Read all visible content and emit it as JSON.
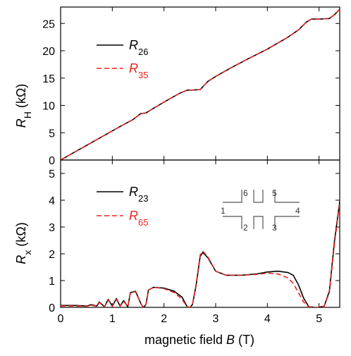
{
  "chart_data": [
    {
      "type": "line",
      "panel": "top",
      "ylabel_symbol": "R",
      "ylabel_sub": "H",
      "ylabel_unit": "(kΩ)",
      "xlim": [
        0,
        5.4
      ],
      "ylim": [
        0,
        28
      ],
      "yticks": [
        "0",
        "5",
        "10",
        "15",
        "20",
        "25"
      ],
      "legend_placement": "upper-left",
      "series": [
        {
          "name_symbol": "R",
          "name_sub": "26",
          "color": "#000000",
          "style": "solid",
          "x": [
            0,
            0.3,
            0.6,
            0.9,
            1.2,
            1.4,
            1.55,
            1.65,
            1.75,
            2.0,
            2.3,
            2.45,
            2.55,
            2.7,
            2.85,
            3.0,
            3.3,
            3.6,
            4.0,
            4.4,
            4.6,
            4.75,
            4.85,
            5.0,
            5.2,
            5.3,
            5.4
          ],
          "y": [
            0,
            1.6,
            3.2,
            4.8,
            6.4,
            7.4,
            8.5,
            8.6,
            9.2,
            10.6,
            12.2,
            12.8,
            12.8,
            12.9,
            14.4,
            15.3,
            16.9,
            18.4,
            20.3,
            22.5,
            23.8,
            25.2,
            25.8,
            25.8,
            25.9,
            26.6,
            27.6
          ]
        },
        {
          "name_symbol": "R",
          "name_sub": "35",
          "color": "#e8231e",
          "style": "dashed",
          "x": [
            0,
            0.3,
            0.6,
            0.9,
            1.2,
            1.4,
            1.55,
            1.65,
            1.75,
            2.0,
            2.3,
            2.45,
            2.55,
            2.7,
            2.85,
            3.0,
            3.3,
            3.6,
            4.0,
            4.4,
            4.6,
            4.75,
            4.85,
            5.0,
            5.2,
            5.3,
            5.4
          ],
          "y": [
            0,
            1.6,
            3.2,
            4.8,
            6.4,
            7.4,
            8.5,
            8.6,
            9.2,
            10.6,
            12.2,
            12.8,
            12.8,
            12.9,
            14.4,
            15.3,
            16.9,
            18.4,
            20.3,
            22.5,
            23.8,
            25.2,
            25.8,
            25.8,
            25.9,
            26.6,
            27.6
          ]
        }
      ]
    },
    {
      "type": "line",
      "panel": "bottom",
      "ylabel_symbol": "R",
      "ylabel_sub": "x",
      "ylabel_unit": "(kΩ)",
      "xlabel_text": "magnetic field ",
      "xlabel_symbol": "B",
      "xlabel_unit": " (T)",
      "xlim": [
        0,
        5.4
      ],
      "ylim": [
        0,
        5.5
      ],
      "xticks": [
        "0",
        "1",
        "2",
        "3",
        "4",
        "5"
      ],
      "yticks": [
        "0",
        "1",
        "2",
        "3",
        "4",
        "5"
      ],
      "legend_placement": "upper-left",
      "inset_contacts": [
        "1",
        "2",
        "3",
        "4",
        "5",
        "6"
      ],
      "series": [
        {
          "name_symbol": "R",
          "name_sub": "23",
          "color": "#000000",
          "style": "solid",
          "x": [
            0,
            0.3,
            0.5,
            0.6,
            0.7,
            0.75,
            0.85,
            0.92,
            1.0,
            1.08,
            1.15,
            1.22,
            1.3,
            1.35,
            1.45,
            1.55,
            1.6,
            1.65,
            1.7,
            1.8,
            2.0,
            2.2,
            2.35,
            2.45,
            2.5,
            2.55,
            2.62,
            2.7,
            2.75,
            2.85,
            3.0,
            3.2,
            3.5,
            3.8,
            4.0,
            4.2,
            4.4,
            4.5,
            4.6,
            4.7,
            4.8,
            4.9,
            5.0,
            5.1,
            5.2,
            5.3,
            5.4
          ],
          "y": [
            0.07,
            0.07,
            0.05,
            0.1,
            0.05,
            0.2,
            0.02,
            0.3,
            0.05,
            0.33,
            0.05,
            0.25,
            0.02,
            0.55,
            0.6,
            0.15,
            0.0,
            0.1,
            0.65,
            0.75,
            0.72,
            0.6,
            0.38,
            0.02,
            0.0,
            0.1,
            0.8,
            1.9,
            2.05,
            1.85,
            1.35,
            1.2,
            1.2,
            1.25,
            1.32,
            1.35,
            1.3,
            1.2,
            0.85,
            0.35,
            0.03,
            0.0,
            0.0,
            0.05,
            0.6,
            2.5,
            3.95
          ]
        },
        {
          "name_symbol": "R",
          "name_sub": "65",
          "color": "#e8231e",
          "style": "dashed",
          "x": [
            0,
            0.3,
            0.5,
            0.6,
            0.7,
            0.75,
            0.85,
            0.92,
            1.0,
            1.08,
            1.15,
            1.22,
            1.3,
            1.35,
            1.45,
            1.55,
            1.6,
            1.65,
            1.7,
            1.8,
            2.0,
            2.2,
            2.35,
            2.45,
            2.5,
            2.55,
            2.62,
            2.7,
            2.75,
            2.85,
            3.0,
            3.2,
            3.5,
            3.8,
            4.0,
            4.2,
            4.4,
            4.5,
            4.6,
            4.7,
            4.8,
            4.9,
            5.0,
            5.1,
            5.2,
            5.3,
            5.4
          ],
          "y": [
            0.05,
            0.05,
            0.04,
            0.08,
            0.04,
            0.18,
            0.02,
            0.28,
            0.04,
            0.3,
            0.04,
            0.22,
            0.02,
            0.55,
            0.58,
            0.14,
            0.0,
            0.1,
            0.65,
            0.75,
            0.7,
            0.55,
            0.3,
            0.01,
            0.0,
            0.1,
            0.85,
            1.95,
            2.1,
            1.88,
            1.35,
            1.2,
            1.2,
            1.23,
            1.28,
            1.25,
            1.1,
            0.9,
            0.55,
            0.2,
            0.02,
            0.0,
            0.0,
            0.05,
            0.55,
            2.4,
            3.9
          ]
        }
      ]
    }
  ]
}
